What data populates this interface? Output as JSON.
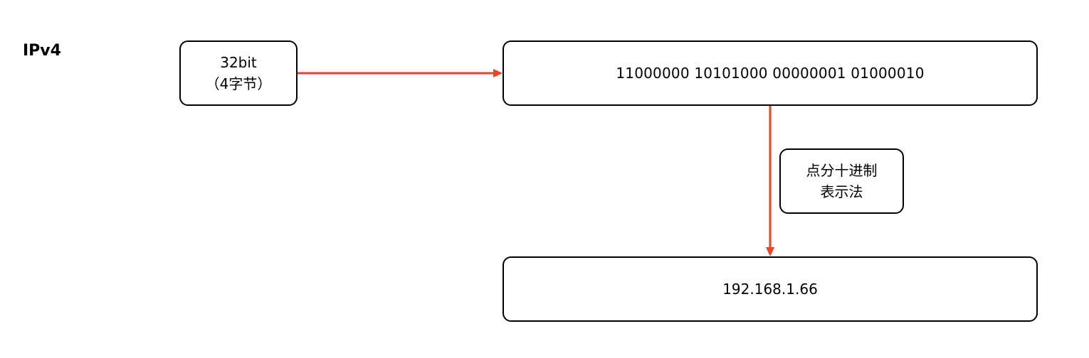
{
  "diagram": {
    "title": "IPv4",
    "size_box": {
      "line1": "32bit",
      "line2": "（4字节）"
    },
    "binary_box": {
      "text": "11000000 10101000 00000001 01000010"
    },
    "method_box": {
      "line1": "点分十进制",
      "line2": "表示法"
    },
    "decimal_box": {
      "text": "192.168.1.66"
    },
    "colors": {
      "arrow": "#EE4422",
      "border": "#000000",
      "background": "#FFFFFF"
    }
  }
}
